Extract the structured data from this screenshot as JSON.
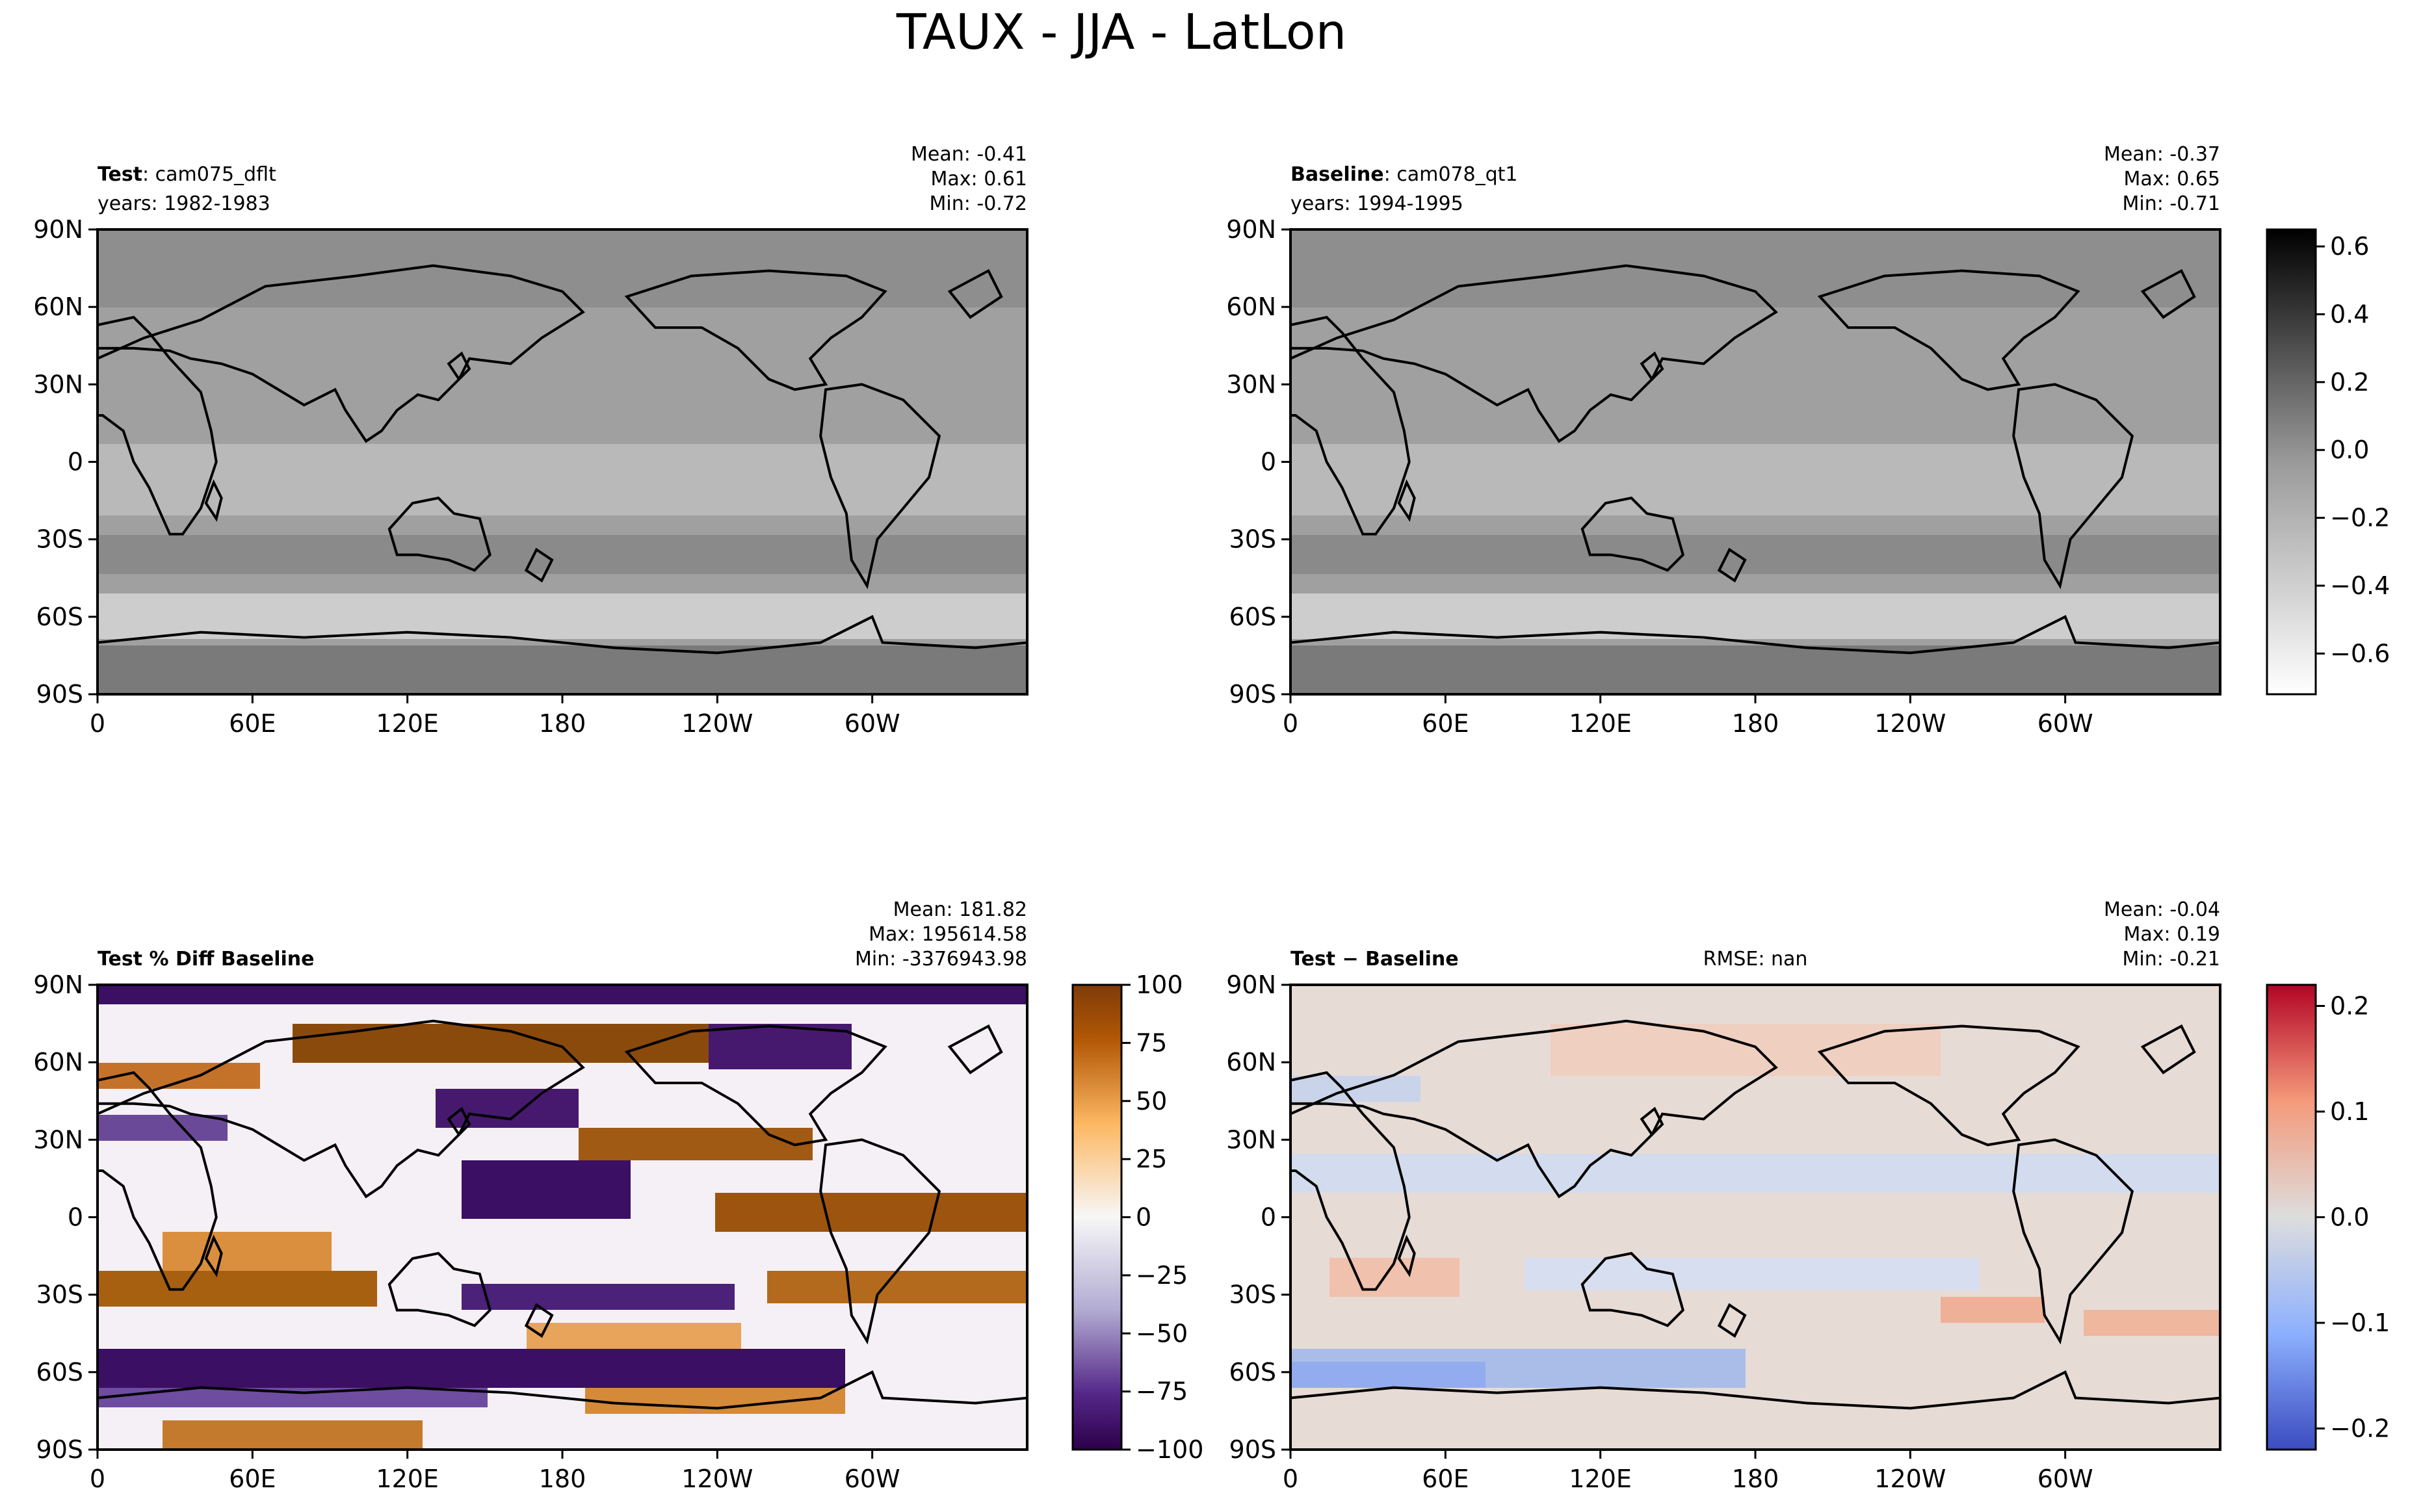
{
  "figure": {
    "title": "TAUX - JJA - LatLon"
  },
  "chart_data": [
    {
      "type": "heatmap",
      "map": "lat-lon",
      "title_bold": "Test",
      "title_rest": ": cam075_dflt",
      "subtitle": "years: 1982-1983",
      "stats": [
        "Mean: -0.41",
        "Max:  0.61",
        "Min: -0.72"
      ],
      "xticks": [
        "0",
        "60E",
        "120E",
        "180",
        "120W",
        "60W"
      ],
      "yticks": [
        "90N",
        "60N",
        "30N",
        "0",
        "30S",
        "60S",
        "90S"
      ],
      "xlim": [
        0,
        360
      ],
      "ylim": [
        -90,
        90
      ],
      "colormap": "Greys",
      "clim": [
        -0.72,
        0.65
      ]
    },
    {
      "type": "heatmap",
      "map": "lat-lon",
      "title_bold": "Baseline",
      "title_rest": ": cam078_qt1",
      "subtitle": "years: 1994-1995",
      "stats": [
        "Mean: -0.37",
        "Max:  0.65",
        "Min: -0.71"
      ],
      "xticks": [
        "0",
        "60E",
        "120E",
        "180",
        "120W",
        "60W"
      ],
      "yticks": [
        "90N",
        "60N",
        "30N",
        "0",
        "30S",
        "60S",
        "90S"
      ],
      "xlim": [
        0,
        360
      ],
      "ylim": [
        -90,
        90
      ],
      "colormap": "Greys",
      "clim": [
        -0.72,
        0.65
      ],
      "colorbar": {
        "ticks": [
          "0.6",
          "0.4",
          "0.2",
          "0.0",
          "−0.2",
          "−0.4",
          "−0.6"
        ],
        "values": [
          0.6,
          0.4,
          0.2,
          0.0,
          -0.2,
          -0.4,
          -0.6
        ],
        "range": [
          -0.72,
          0.65
        ]
      }
    },
    {
      "type": "heatmap",
      "map": "lat-lon",
      "title_bold": "Test % Diff Baseline",
      "title_rest": "",
      "subtitle": "",
      "stats": [
        "Mean: 181.82",
        "Max: 195614.58",
        "Min: -3376943.98"
      ],
      "xticks": [
        "0",
        "60E",
        "120E",
        "180",
        "120W",
        "60W"
      ],
      "yticks": [
        "90N",
        "60N",
        "30N",
        "0",
        "30S",
        "60S",
        "90S"
      ],
      "xlim": [
        0,
        360
      ],
      "ylim": [
        -90,
        90
      ],
      "colormap": "PuOr_r",
      "clim": [
        -100,
        100
      ],
      "colorbar": {
        "ticks": [
          "100",
          "75",
          "50",
          "25",
          "0",
          "−25",
          "−50",
          "−75",
          "−100"
        ],
        "values": [
          100,
          75,
          50,
          25,
          0,
          -25,
          -50,
          -75,
          -100
        ],
        "range": [
          -100,
          100
        ]
      }
    },
    {
      "type": "heatmap",
      "map": "lat-lon",
      "title_bold": "Test − Baseline",
      "title_rest": "",
      "subtitle": "",
      "center_text": "RMSE: nan",
      "stats": [
        "Mean: -0.04",
        "Max:  0.19",
        "Min: -0.21"
      ],
      "xticks": [
        "0",
        "60E",
        "120E",
        "180",
        "120W",
        "60W"
      ],
      "yticks": [
        "90N",
        "60N",
        "30N",
        "0",
        "30S",
        "60S",
        "90S"
      ],
      "xlim": [
        0,
        360
      ],
      "ylim": [
        -90,
        90
      ],
      "colormap": "coolwarm",
      "clim": [
        -0.22,
        0.22
      ],
      "colorbar": {
        "ticks": [
          "0.2",
          "0.1",
          "0.0",
          "−0.1",
          "−0.2"
        ],
        "values": [
          0.2,
          0.1,
          0.0,
          -0.1,
          -0.2
        ],
        "range": [
          -0.22,
          0.22
        ]
      }
    }
  ]
}
